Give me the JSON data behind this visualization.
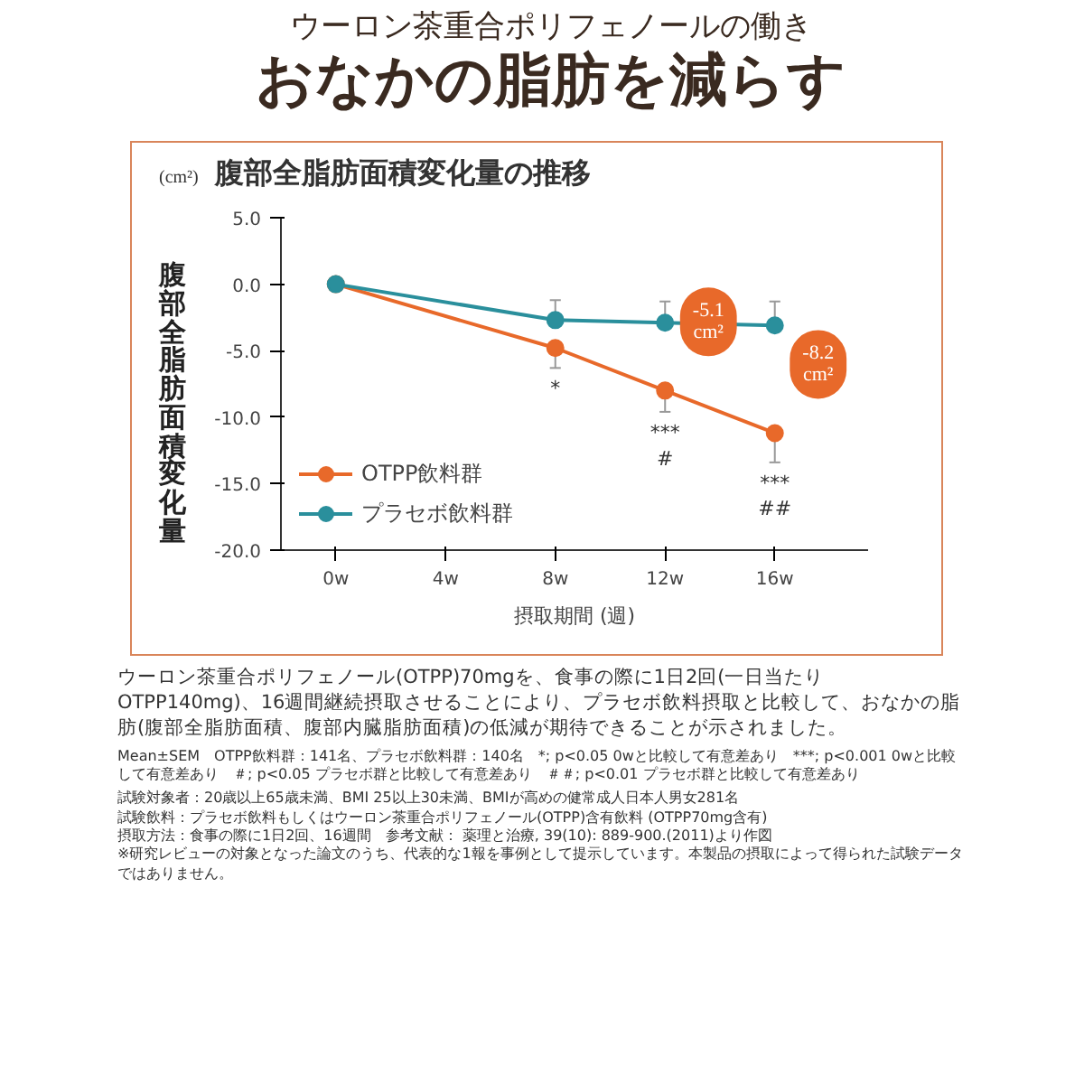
{
  "chart_data": {
    "type": "line",
    "title": "腹部全脂肪面積変化量の推移",
    "xlabel": "摂取期間 (週)",
    "ylabel": "腹部全脂肪面積変化量",
    "categories": [
      "0w",
      "4w",
      "8w",
      "12w",
      "16w"
    ],
    "series": [
      {
        "name": "OTPP飲料群",
        "color": "#e8692a",
        "values": [
          0.0,
          null,
          -4.8,
          -8.0,
          -11.2
        ],
        "errors": [
          null,
          null,
          [
            -6.3,
            -4.8
          ],
          [
            -9.6,
            -8.0
          ],
          [
            -13.4,
            -11.2
          ]
        ]
      },
      {
        "name": "プラセボ飲料群",
        "color": "#2a8f9c",
        "values": [
          0.0,
          null,
          -2.7,
          -2.9,
          -3.1
        ],
        "errors": [
          null,
          null,
          [
            -2.7,
            -1.2
          ],
          [
            -2.9,
            -1.3
          ],
          [
            -3.1,
            -1.3
          ]
        ]
      }
    ],
    "ylim": [
      -20,
      5
    ],
    "yticks": [
      {
        "value": 5,
        "label": "5.0"
      },
      {
        "value": 0,
        "label": "0.0"
      },
      {
        "value": -5,
        "label": "-5.0"
      },
      {
        "value": -10,
        "label": "-10.0"
      },
      {
        "value": -15,
        "label": "-15.0"
      },
      {
        "value": -20,
        "label": "-20.0"
      }
    ],
    "grid": false,
    "legend": "bottom left",
    "marker": "circle",
    "line_style": "solid",
    "annotations": [
      "ウーロン茶重合ポリフェノールの働き",
      "おなかの脂肪を減らす",
      "(cm²)",
      "ウーロン茶重合ポリフェノール(OTPP)70mgを、食事の際に1日2回(一日当たりOTPP140mg)、16週間継続摂取させることにより、プラセボ飲料摂取と比較して、おなかの脂肪(腹部全脂肪面積、腹部内臓脂肪面積)の低減が期待できることが示されました。",
      "Mean±SEM　OTPP飲料群：141名、プラセボ飲料群：140名　*; p<0.05 0wと比較して有意差あり　***; p<0.001 0wと比較して有意差あり　＃; p<0.05 プラセボ群と比較して有意差あり　＃＃; p<0.01 プラセボ群と比較して有意差あり",
      "試験対象者：20歳以上65歳未満、BMI 25以上30未満、BMIが高めの健常成人日本人男女281名",
      "試験飲料：プラセボ飲料もしくはウーロン茶重合ポリフェノール(OTPP)含有飲料 (OTPP70mg含有)",
      "摂取方法：食事の際に1日2回、16週間　参考文献： 薬理と治療, 39(10): 889-900.(2011)より作図",
      "※研究レビューの対象となった論文のうち、代表的な1報を事例として提示しています。本製品の摂取によって得られた試験データではありません。",
      {
        "text": "*",
        "x": "8w",
        "y": -6.3
      },
      {
        "text": "***\n#",
        "x": "12w",
        "y": -9.6
      },
      {
        "text": "***\n##",
        "x": "16w",
        "y": -13.4
      },
      {
        "text": "-5.1 cm²",
        "x": "12w",
        "y": -8.0
      },
      {
        "text": "-8.2 cm²",
        "x": "16w",
        "y": -11.2
      }
    ]
  }
}
